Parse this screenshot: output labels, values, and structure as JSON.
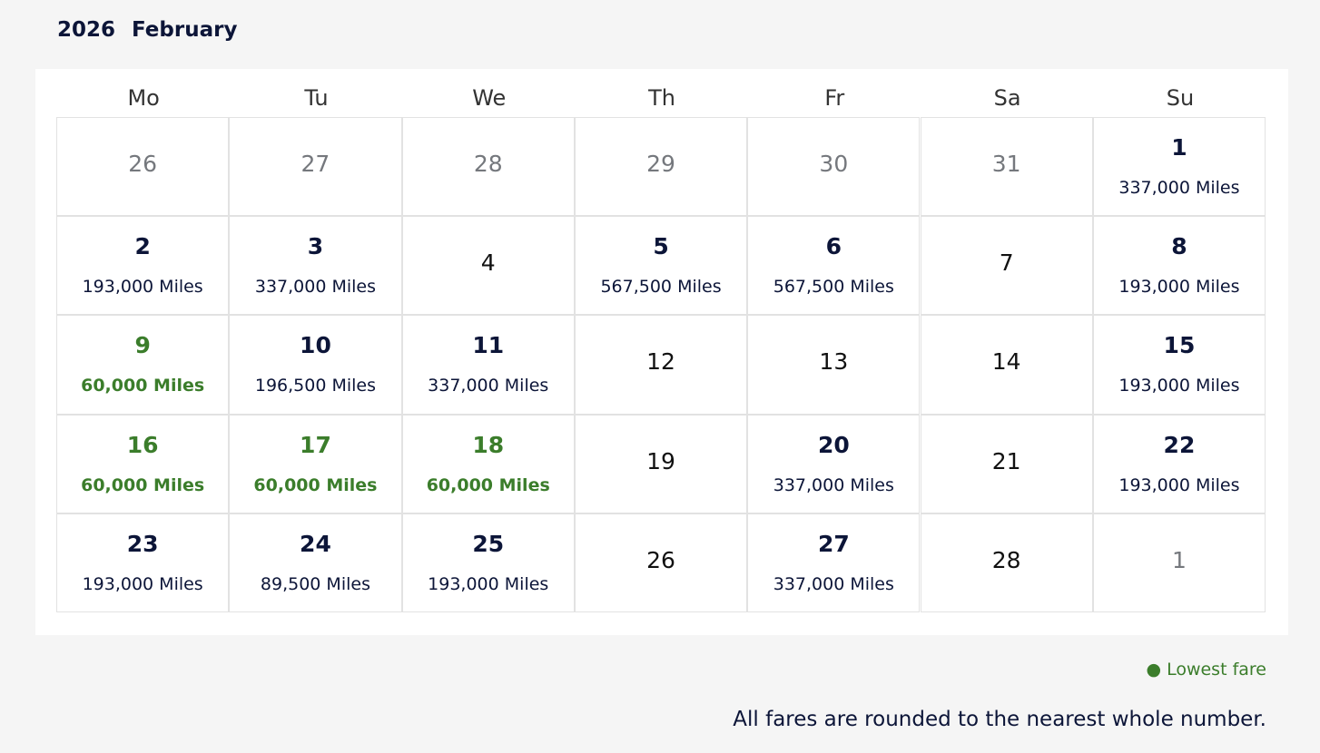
{
  "header": {
    "year": "2026",
    "month": "February"
  },
  "weekdays": [
    "Mo",
    "Tu",
    "We",
    "Th",
    "Fr",
    "Sa",
    "Su"
  ],
  "weeks": [
    [
      {
        "day": "26",
        "color": "#75787d"
      },
      {
        "day": "27",
        "color": "#75787d"
      },
      {
        "day": "28",
        "color": "#75787d"
      },
      {
        "day": "29",
        "color": "#75787d"
      },
      {
        "day": "30",
        "color": "#75787d"
      },
      {
        "day": "31",
        "color": "#75787d"
      },
      {
        "day": "1",
        "fare": "337,000 Miles",
        "color": "#0c1538"
      }
    ],
    [
      {
        "day": "2",
        "fare": "193,000 Miles",
        "color": "#0c1538"
      },
      {
        "day": "3",
        "fare": "337,000 Miles",
        "color": "#0c1538"
      },
      {
        "day": "4",
        "color": "#111111"
      },
      {
        "day": "5",
        "fare": "567,500 Miles",
        "color": "#0c1538"
      },
      {
        "day": "6",
        "fare": "567,500 Miles",
        "color": "#0c1538"
      },
      {
        "day": "7",
        "color": "#111111"
      },
      {
        "day": "8",
        "fare": "193,000 Miles",
        "color": "#0c1538"
      }
    ],
    [
      {
        "day": "9",
        "fare": "60,000 Miles",
        "color": "#3b7d2b"
      },
      {
        "day": "10",
        "fare": "196,500 Miles",
        "color": "#0c1538"
      },
      {
        "day": "11",
        "fare": "337,000 Miles",
        "color": "#0c1538"
      },
      {
        "day": "12",
        "color": "#111111"
      },
      {
        "day": "13",
        "color": "#111111"
      },
      {
        "day": "14",
        "color": "#111111"
      },
      {
        "day": "15",
        "fare": "193,000 Miles",
        "color": "#0c1538"
      }
    ],
    [
      {
        "day": "16",
        "fare": "60,000 Miles",
        "color": "#3b7d2b"
      },
      {
        "day": "17",
        "fare": "60,000 Miles",
        "color": "#3b7d2b"
      },
      {
        "day": "18",
        "fare": "60,000 Miles",
        "color": "#3b7d2b"
      },
      {
        "day": "19",
        "color": "#111111"
      },
      {
        "day": "20",
        "fare": "337,000 Miles",
        "color": "#0c1538"
      },
      {
        "day": "21",
        "color": "#111111"
      },
      {
        "day": "22",
        "fare": "193,000 Miles",
        "color": "#0c1538"
      }
    ],
    [
      {
        "day": "23",
        "fare": "193,000 Miles",
        "color": "#0c1538"
      },
      {
        "day": "24",
        "fare": "89,500 Miles",
        "color": "#0c1538"
      },
      {
        "day": "25",
        "fare": "193,000 Miles",
        "color": "#0c1538"
      },
      {
        "day": "26",
        "color": "#111111"
      },
      {
        "day": "27",
        "fare": "337,000 Miles",
        "color": "#0c1538"
      },
      {
        "day": "28",
        "color": "#111111"
      },
      {
        "day": "1",
        "color": "#75787d"
      }
    ]
  ],
  "legend": {
    "label": "Lowest fare",
    "color": "#3b7d2b"
  },
  "note": "All fares are rounded to the nearest whole number."
}
